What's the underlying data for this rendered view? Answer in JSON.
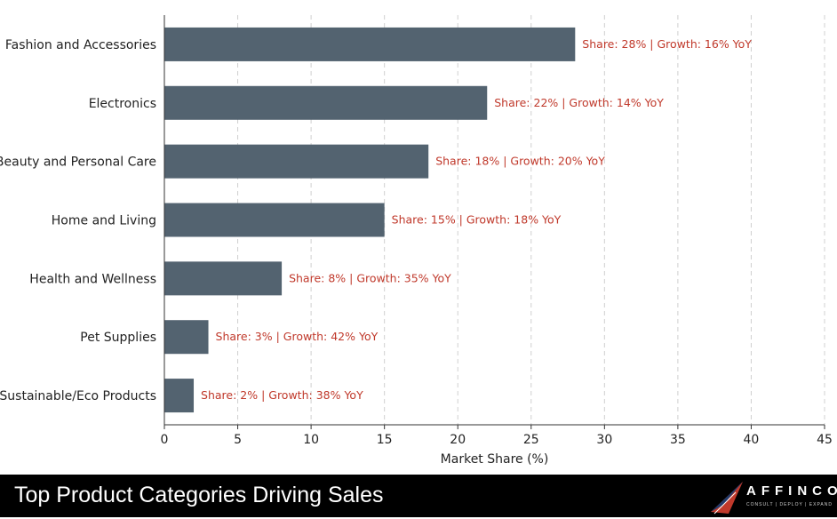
{
  "chart_data": {
    "type": "bar",
    "orientation": "horizontal",
    "categories": [
      "Fashion and Accessories",
      "Electronics",
      "Beauty and Personal Care",
      "Home and Living",
      "Health and Wellness",
      "Pet Supplies",
      "Sustainable/Eco Products"
    ],
    "values": [
      28,
      22,
      18,
      15,
      8,
      3,
      2
    ],
    "data_labels": [
      "Share: 28% | Growth: 16% YoY",
      "Share: 22% | Growth: 14% YoY",
      "Share: 18% | Growth: 20% YoY",
      "Share: 15% | Growth: 18% YoY",
      "Share: 8% | Growth: 35% YoY",
      "Share: 3% | Growth: 42% YoY",
      "Share: 2% | Growth: 38% YoY"
    ],
    "xlabel": "Market Share (%)",
    "ylabel": "",
    "xlim": [
      0,
      45
    ],
    "xticks": [
      0,
      5,
      10,
      15,
      20,
      25,
      30,
      35,
      40,
      45
    ],
    "grid": "vertical dashed",
    "bar_color": "#536370",
    "label_color": "#c0392b"
  },
  "footer": {
    "title": "Top Product Categories Driving Sales",
    "logo_text": "AFFINCO",
    "logo_tagline": "CONSULT | DEPLOY | EXPAND"
  }
}
